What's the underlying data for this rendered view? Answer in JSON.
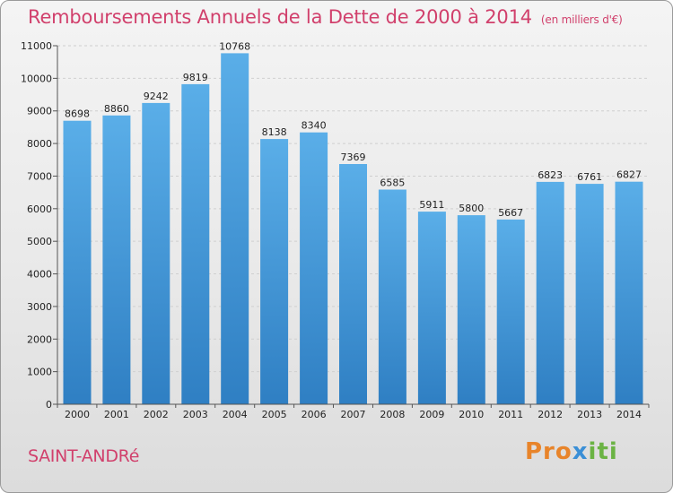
{
  "header": {
    "title": "Remboursements Annuels de la Dette de 2000 à 2014",
    "unit": "(en milliers d'€)"
  },
  "footer": {
    "commune": "SAINT-ANDRé",
    "logo_text": "Proxiti"
  },
  "colors": {
    "title": "#d1406c",
    "bar_top": "#5aaee8",
    "bar_bottom": "#2f7fc3"
  },
  "chart_data": {
    "type": "bar",
    "title": "Remboursements Annuels de la Dette de 2000 à 2014",
    "xlabel": "",
    "ylabel": "",
    "categories": [
      "2000",
      "2001",
      "2002",
      "2003",
      "2004",
      "2005",
      "2006",
      "2007",
      "2008",
      "2009",
      "2010",
      "2011",
      "2012",
      "2013",
      "2014"
    ],
    "values": [
      8698,
      8860,
      9242,
      9819,
      10768,
      8138,
      8340,
      7369,
      6585,
      5911,
      5800,
      5667,
      6823,
      6761,
      6827
    ],
    "ylim": [
      0,
      11000
    ],
    "yticks": [
      0,
      1000,
      2000,
      3000,
      4000,
      5000,
      6000,
      7000,
      8000,
      9000,
      10000,
      11000
    ],
    "grid": true,
    "legend": "none"
  }
}
